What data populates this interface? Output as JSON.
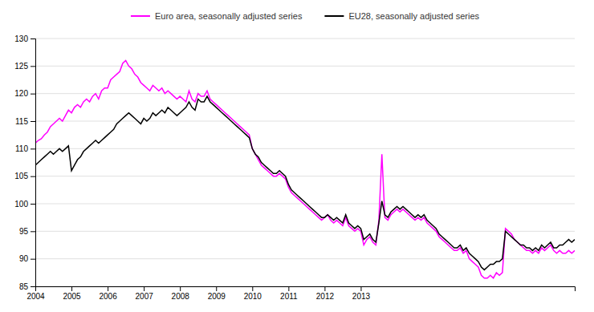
{
  "chart_data": {
    "type": "line",
    "categories": [
      "2004",
      null,
      null,
      null,
      null,
      null,
      null,
      null,
      null,
      null,
      null,
      null,
      "2005",
      null,
      null,
      null,
      null,
      null,
      null,
      null,
      null,
      null,
      null,
      null,
      "2006",
      null,
      null,
      null,
      null,
      null,
      null,
      null,
      null,
      null,
      null,
      null,
      "2007",
      null,
      null,
      null,
      null,
      null,
      null,
      null,
      null,
      null,
      null,
      null,
      "2008",
      null,
      null,
      null,
      null,
      null,
      null,
      null,
      null,
      null,
      null,
      null,
      "2009",
      null,
      null,
      null,
      null,
      null,
      null,
      null,
      null,
      null,
      null,
      null,
      "2010",
      null,
      null,
      null,
      null,
      null,
      null,
      null,
      null,
      null,
      null,
      null,
      "2011",
      null,
      null,
      null,
      null,
      null,
      null,
      null,
      null,
      null,
      null,
      null,
      "2012",
      null,
      null,
      null,
      null,
      null,
      null,
      null,
      null,
      null,
      null,
      null,
      "2013",
      null,
      null,
      null,
      null,
      null,
      null,
      null,
      null,
      null,
      null,
      null,
      null,
      null,
      null,
      null,
      null,
      null,
      null,
      null,
      null,
      null,
      null,
      null,
      null,
      null,
      null,
      null,
      null,
      null,
      null,
      null,
      null,
      null,
      null,
      null,
      null,
      null,
      null,
      null,
      null,
      null,
      null,
      null,
      null,
      null,
      null,
      null,
      null,
      null,
      null,
      null,
      null,
      null,
      null,
      null,
      null,
      null,
      null,
      null,
      null,
      null,
      null,
      null,
      null,
      null,
      null,
      null,
      null,
      null,
      null,
      null
    ],
    "series": [
      {
        "name": "Euro area, seasonally adjusted series",
        "color": "#ff00ff",
        "values": [
          111.0,
          111.5,
          111.8,
          112.5,
          113.0,
          114.0,
          114.5,
          115.0,
          115.5,
          115.0,
          116.0,
          117.0,
          116.5,
          117.5,
          118.0,
          117.5,
          118.5,
          119.0,
          118.5,
          119.5,
          120.0,
          119.0,
          120.5,
          121.0,
          121.0,
          122.5,
          123.0,
          123.5,
          124.0,
          125.5,
          126.0,
          125.0,
          124.5,
          123.5,
          123.0,
          122.0,
          121.5,
          121.0,
          120.5,
          121.5,
          121.0,
          120.5,
          121.0,
          120.0,
          120.5,
          120.0,
          119.5,
          119.0,
          119.5,
          119.0,
          118.5,
          120.5,
          119.0,
          118.5,
          120.0,
          119.5,
          119.5,
          120.5,
          119.0,
          118.5,
          118.0,
          117.5,
          117.0,
          116.5,
          116.0,
          115.5,
          115.0,
          114.5,
          114.0,
          113.5,
          113.0,
          112.5,
          110.0,
          109.0,
          108.0,
          107.0,
          106.5,
          106.0,
          105.5,
          105.0,
          105.0,
          105.5,
          105.0,
          104.5,
          103.0,
          102.0,
          101.5,
          101.0,
          100.5,
          100.0,
          99.5,
          99.0,
          98.5,
          98.0,
          97.5,
          97.0,
          97.5,
          98.0,
          97.0,
          96.5,
          97.0,
          96.5,
          96.0,
          97.5,
          96.0,
          95.5,
          95.0,
          95.5,
          95.0,
          92.5,
          93.5,
          94.0,
          93.0,
          92.5,
          97.0,
          109.0,
          97.5,
          97.0,
          98.0,
          98.5,
          99.0,
          98.5,
          99.0,
          98.5,
          98.0,
          97.5,
          97.0,
          97.5,
          97.0,
          97.5,
          96.5,
          96.0,
          95.5,
          95.0,
          94.0,
          93.5,
          93.0,
          92.5,
          92.0,
          91.5,
          91.5,
          92.0,
          91.0,
          91.5,
          90.0,
          89.5,
          89.0,
          88.5,
          87.0,
          86.5,
          86.5,
          87.0,
          86.5,
          87.5,
          87.0,
          87.5,
          95.5,
          95.0,
          94.5,
          93.5,
          93.0,
          92.5,
          92.0,
          91.5,
          91.5,
          91.0,
          91.5,
          91.0,
          92.0,
          91.5,
          92.0,
          92.5,
          91.5,
          91.0,
          91.5,
          91.0,
          91.0,
          91.5,
          91.0,
          91.5
        ]
      },
      {
        "name": "EU28, seasonally adjusted series",
        "color": "#000000",
        "values": [
          107.0,
          107.5,
          108.0,
          108.5,
          109.0,
          109.5,
          109.0,
          109.5,
          110.0,
          109.5,
          110.0,
          110.5,
          106.0,
          107.0,
          108.0,
          108.5,
          109.5,
          110.0,
          110.5,
          111.0,
          111.5,
          111.0,
          111.5,
          112.0,
          112.5,
          113.0,
          113.5,
          114.5,
          115.0,
          115.5,
          116.0,
          116.5,
          116.0,
          115.5,
          115.0,
          114.5,
          115.5,
          115.0,
          115.5,
          116.5,
          116.0,
          116.5,
          117.0,
          116.5,
          117.5,
          117.0,
          116.5,
          116.0,
          116.5,
          117.0,
          117.5,
          118.5,
          117.5,
          117.0,
          119.0,
          118.5,
          118.5,
          119.5,
          118.5,
          118.0,
          117.5,
          117.0,
          116.5,
          116.0,
          115.5,
          115.0,
          114.5,
          114.0,
          113.5,
          113.0,
          112.5,
          112.0,
          110.0,
          109.0,
          108.5,
          107.5,
          107.0,
          106.5,
          106.0,
          105.5,
          105.5,
          106.0,
          105.5,
          105.0,
          103.5,
          102.5,
          102.0,
          101.5,
          101.0,
          100.5,
          100.0,
          99.5,
          99.0,
          98.5,
          98.0,
          97.5,
          97.5,
          98.0,
          97.5,
          97.0,
          97.5,
          97.0,
          96.5,
          98.0,
          96.5,
          96.0,
          95.5,
          96.0,
          95.5,
          93.5,
          94.0,
          94.5,
          93.5,
          93.0,
          96.5,
          100.5,
          98.0,
          97.5,
          98.5,
          99.0,
          99.5,
          99.0,
          99.5,
          99.0,
          98.5,
          98.0,
          97.5,
          98.0,
          97.5,
          98.0,
          97.0,
          96.5,
          96.0,
          95.5,
          94.5,
          94.0,
          93.5,
          93.0,
          92.5,
          92.0,
          92.0,
          92.5,
          91.5,
          92.0,
          91.0,
          90.5,
          90.0,
          89.5,
          88.5,
          88.0,
          88.5,
          89.0,
          89.0,
          89.5,
          89.5,
          90.0,
          95.0,
          94.5,
          94.0,
          93.5,
          93.0,
          92.5,
          92.5,
          92.0,
          92.0,
          91.5,
          92.0,
          91.5,
          92.5,
          92.0,
          92.5,
          93.0,
          92.0,
          92.0,
          92.5,
          92.5,
          93.0,
          93.5,
          93.0,
          93.5
        ]
      }
    ],
    "ylim": [
      85,
      130
    ],
    "yticks": [
      85,
      90,
      95,
      100,
      105,
      110,
      115,
      120,
      125,
      130
    ],
    "grid": true,
    "legend": "top"
  }
}
